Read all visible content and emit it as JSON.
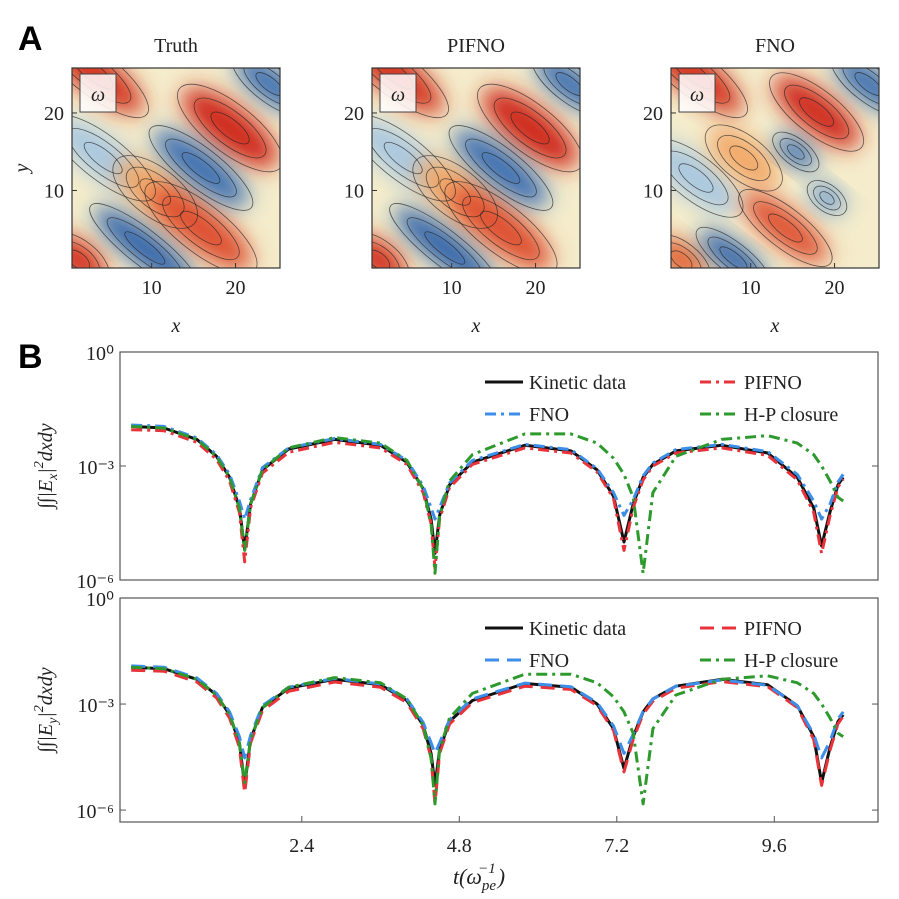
{
  "panel_labels": [
    "A",
    "B"
  ],
  "chart_data": [
    {
      "type": "heatmap",
      "title": "Truth",
      "annotation": "ω",
      "xlabel": "x",
      "ylabel": "y",
      "xlim": [
        0.5,
        25.3
      ],
      "ylim": [
        0,
        25.8
      ],
      "xticks": [
        10,
        20
      ],
      "yticks": [
        10,
        20
      ]
    },
    {
      "type": "heatmap",
      "title": "PIFNO",
      "annotation": "ω",
      "xlabel": "x",
      "xlim": [
        0.5,
        25.3
      ],
      "ylim": [
        0,
        25.8
      ],
      "xticks": [
        10,
        20
      ],
      "yticks": [
        10,
        20
      ]
    },
    {
      "type": "heatmap",
      "title": "FNO",
      "annotation": "ω",
      "xlabel": "x",
      "xlim": [
        0.5,
        25.3
      ],
      "ylim": [
        0,
        25.8
      ],
      "xticks": [
        10,
        20
      ],
      "yticks": [
        10,
        20
      ]
    },
    {
      "type": "line",
      "log_y": true,
      "ylabel": [
        "∫∫|E",
        "x",
        "|",
        "2",
        "dxdy"
      ],
      "xlim": [
        -0.37,
        11.18
      ],
      "ylim": [
        1e-06,
        1
      ],
      "yticks": [
        {
          "value": 1,
          "label": "10⁰"
        },
        {
          "value": 0.001,
          "label": "10⁻³"
        },
        {
          "value": 1e-06,
          "label": "10⁻⁶"
        }
      ],
      "legend": "upper right",
      "x": [
        -0.2,
        0.3,
        0.8,
        1.1,
        1.3,
        1.45,
        1.53,
        1.62,
        1.8,
        2.2,
        2.9,
        3.6,
        4.0,
        4.25,
        4.37,
        4.43,
        4.5,
        4.65,
        5.0,
        5.8,
        6.5,
        6.9,
        7.15,
        7.31,
        7.45,
        7.6,
        7.75,
        8.1,
        8.8,
        9.5,
        9.95,
        10.2,
        10.32,
        10.45,
        10.57,
        10.65
      ],
      "series": [
        {
          "name": "Kinetic data",
          "color": "#111111",
          "dash": "solid",
          "values": [
            0.011,
            0.01,
            0.005,
            0.0018,
            0.0005,
            7.9e-05,
            6.3e-06,
            0.0001,
            0.00079,
            0.0028,
            0.005,
            0.0035,
            0.00126,
            0.00025,
            4e-05,
            5e-06,
            5e-05,
            0.00032,
            0.00126,
            0.0035,
            0.0025,
            0.00079,
            0.00016,
            1e-05,
            0.0001,
            0.0005,
            0.0011,
            0.0025,
            0.0035,
            0.0022,
            0.0005,
            7.9e-05,
            7.9e-06,
            6.3e-05,
            0.00032,
            0.0005
          ]
        },
        {
          "name": "PIFNO",
          "color": "#e8333a",
          "dash": "dashdot",
          "values": [
            0.009,
            0.0085,
            0.0042,
            0.0015,
            0.0004,
            6e-05,
            3e-06,
            8e-05,
            0.00065,
            0.0023,
            0.0042,
            0.003,
            0.0011,
            0.0002,
            3e-05,
            2e-06,
            4e-05,
            0.00027,
            0.0011,
            0.003,
            0.0022,
            0.0007,
            0.00014,
            6e-06,
            8e-05,
            0.00043,
            0.001,
            0.0022,
            0.003,
            0.0019,
            0.00043,
            6e-05,
            5e-06,
            5e-05,
            0.00028,
            0.00045
          ]
        },
        {
          "name": "FNO",
          "color": "#3d8ee8",
          "dash": "dashdot",
          "values": [
            0.012,
            0.011,
            0.0055,
            0.002,
            0.0006,
            0.00012,
            4e-05,
            0.00013,
            0.0009,
            0.003,
            0.0053,
            0.0037,
            0.0014,
            0.0003,
            8e-05,
            4e-05,
            8e-05,
            0.00036,
            0.0014,
            0.0037,
            0.0027,
            0.00085,
            0.0002,
            5e-05,
            0.00013,
            0.00055,
            0.0012,
            0.0027,
            0.0037,
            0.0024,
            0.0006,
            0.00012,
            4e-05,
            0.0001,
            0.00038,
            0.0006
          ]
        },
        {
          "name": "H-P closure",
          "color": "#2e9a2e",
          "dash": "dashdot",
          "values": [
            0.011,
            0.01,
            0.005,
            0.0018,
            0.0005,
            7.9e-05,
            6e-06,
            0.0001,
            0.0008,
            0.003,
            0.0056,
            0.004,
            0.0014,
            0.00025,
            3e-05,
            1.5e-06,
            5e-05,
            0.0004,
            0.002,
            0.007,
            0.007,
            0.004,
            0.0016,
            0.0006,
            0.00015,
            1.5e-06,
            0.0002,
            0.0018,
            0.005,
            0.0063,
            0.004,
            0.002,
            0.001,
            0.0004,
            0.00015,
            0.00012
          ]
        }
      ]
    },
    {
      "type": "line",
      "log_y": true,
      "ylabel": [
        "∫∫|E",
        "y",
        "|",
        "2",
        "dxdy"
      ],
      "xlabel": [
        "t(ω",
        "pe",
        "−1",
        ")"
      ],
      "xlim": [
        -0.37,
        11.18
      ],
      "ylim": [
        4.6e-07,
        1
      ],
      "xticks": [
        2.4,
        4.8,
        7.2,
        9.6
      ],
      "yticks": [
        {
          "value": 1,
          "label": "10⁰"
        },
        {
          "value": 0.001,
          "label": "10⁻³"
        },
        {
          "value": 1e-06,
          "label": "10⁻⁶"
        }
      ],
      "legend": "upper right",
      "x": [
        -0.2,
        0.3,
        0.8,
        1.1,
        1.3,
        1.45,
        1.53,
        1.62,
        1.8,
        2.2,
        2.9,
        3.6,
        4.0,
        4.25,
        4.37,
        4.43,
        4.5,
        4.65,
        5.0,
        5.8,
        6.5,
        6.9,
        7.15,
        7.31,
        7.45,
        7.6,
        7.75,
        8.1,
        8.8,
        9.5,
        9.95,
        10.2,
        10.32,
        10.45,
        10.57,
        10.65
      ],
      "series": [
        {
          "name": "Kinetic data",
          "color": "#111111",
          "dash": "solid",
          "values": [
            0.011,
            0.01,
            0.005,
            0.0018,
            0.0005,
            7.9e-05,
            5e-06,
            0.0001,
            0.00079,
            0.0028,
            0.005,
            0.0035,
            0.00126,
            0.00025,
            4e-05,
            5e-06,
            5e-05,
            0.00032,
            0.00126,
            0.0038,
            0.003,
            0.001,
            0.0002,
            1.5e-05,
            0.00012,
            0.0006,
            0.0014,
            0.0032,
            0.005,
            0.0035,
            0.0009,
            0.00012,
            6e-06,
            6e-05,
            0.00032,
            0.0005
          ]
        },
        {
          "name": "PIFNO",
          "color": "#e8333a",
          "dash": "dashed",
          "values": [
            0.009,
            0.0085,
            0.0042,
            0.0015,
            0.0004,
            6e-05,
            3e-06,
            8e-05,
            0.00065,
            0.0023,
            0.0042,
            0.003,
            0.0011,
            0.0002,
            3e-05,
            1.5e-06,
            4e-05,
            0.00027,
            0.0011,
            0.0032,
            0.0026,
            0.0009,
            0.00018,
            1.2e-05,
            0.0001,
            0.00052,
            0.0012,
            0.0028,
            0.0043,
            0.0031,
            0.0008,
            0.0001,
            5e-06,
            5e-05,
            0.00028,
            0.00045
          ]
        },
        {
          "name": "FNO",
          "color": "#3d8ee8",
          "dash": "dashed",
          "values": [
            0.012,
            0.011,
            0.0055,
            0.002,
            0.0006,
            0.00012,
            3e-05,
            0.00013,
            0.0009,
            0.003,
            0.0053,
            0.0037,
            0.0014,
            0.0003,
            8e-05,
            4e-05,
            8e-05,
            0.00036,
            0.0014,
            0.0039,
            0.0031,
            0.0011,
            0.00024,
            4e-05,
            0.00014,
            0.00062,
            0.0014,
            0.0032,
            0.0048,
            0.0034,
            0.0009,
            0.00014,
            3e-05,
            9e-05,
            0.00038,
            0.0006
          ]
        },
        {
          "name": "H-P closure",
          "color": "#2e9a2e",
          "dash": "dashdot",
          "values": [
            0.011,
            0.01,
            0.005,
            0.0018,
            0.0005,
            7.9e-05,
            6e-06,
            0.0001,
            0.0008,
            0.003,
            0.0056,
            0.004,
            0.0014,
            0.00025,
            3e-05,
            1.5e-06,
            5e-05,
            0.0004,
            0.002,
            0.007,
            0.007,
            0.004,
            0.0016,
            0.0006,
            0.00015,
            1.5e-06,
            0.0002,
            0.0018,
            0.005,
            0.0063,
            0.004,
            0.002,
            0.001,
            0.0004,
            0.00015,
            0.00012
          ]
        }
      ]
    }
  ]
}
